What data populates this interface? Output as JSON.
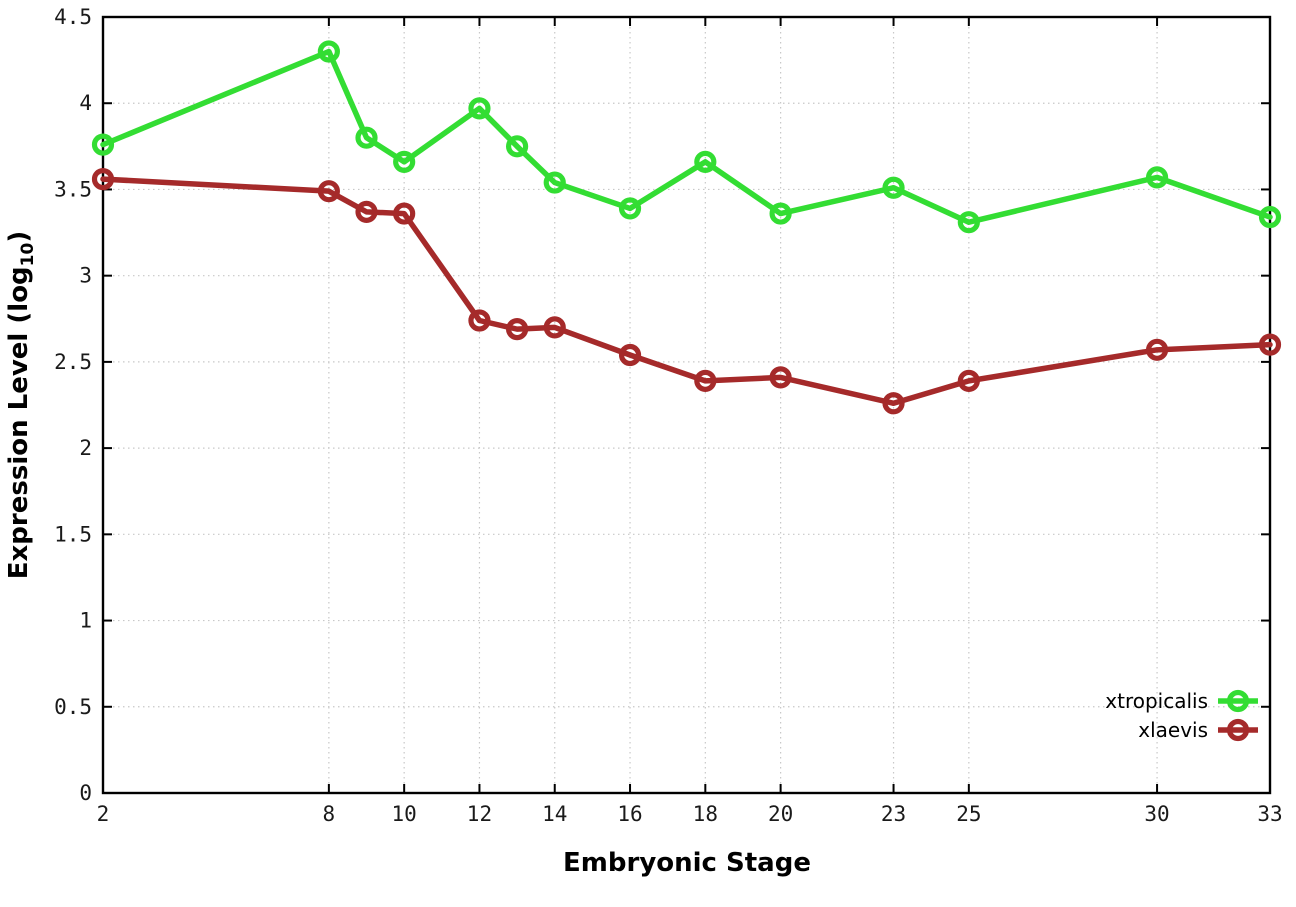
{
  "chart_data": {
    "type": "line",
    "title": "",
    "xlabel": "Embryonic Stage",
    "ylabel": "Expression Level (log10)",
    "ylabel_base": "Expression Level (log",
    "ylabel_sub": "10",
    "ylabel_close": ")",
    "x": [
      2,
      8,
      9,
      10,
      12,
      13,
      14,
      16,
      18,
      20,
      23,
      25,
      30,
      33
    ],
    "series": [
      {
        "name": "xtropicalis",
        "color": "#33DD33",
        "values": [
          3.76,
          4.3,
          3.8,
          3.66,
          3.97,
          3.75,
          3.54,
          3.39,
          3.66,
          3.36,
          3.51,
          3.31,
          3.57,
          3.34
        ]
      },
      {
        "name": "xlaevis",
        "color": "#A52A2A",
        "values": [
          3.56,
          3.49,
          3.37,
          3.36,
          2.74,
          2.69,
          2.7,
          2.54,
          2.39,
          2.41,
          2.26,
          2.39,
          2.57,
          2.6
        ]
      }
    ],
    "xlim": [
      2,
      33
    ],
    "ylim": [
      0,
      4.5
    ],
    "xticks": [
      2,
      8,
      10,
      12,
      14,
      16,
      18,
      20,
      23,
      25,
      30,
      33
    ],
    "yticks": [
      0,
      0.5,
      1,
      1.5,
      2,
      2.5,
      3,
      3.5,
      4,
      4.5
    ],
    "grid": true,
    "legend_position": "bottom-right",
    "colors": {
      "background": "#ffffff",
      "grid": "#c8c8c8",
      "axis": "#000000",
      "tick_label": "#1a1a1a",
      "legend_text": "#000000"
    }
  }
}
